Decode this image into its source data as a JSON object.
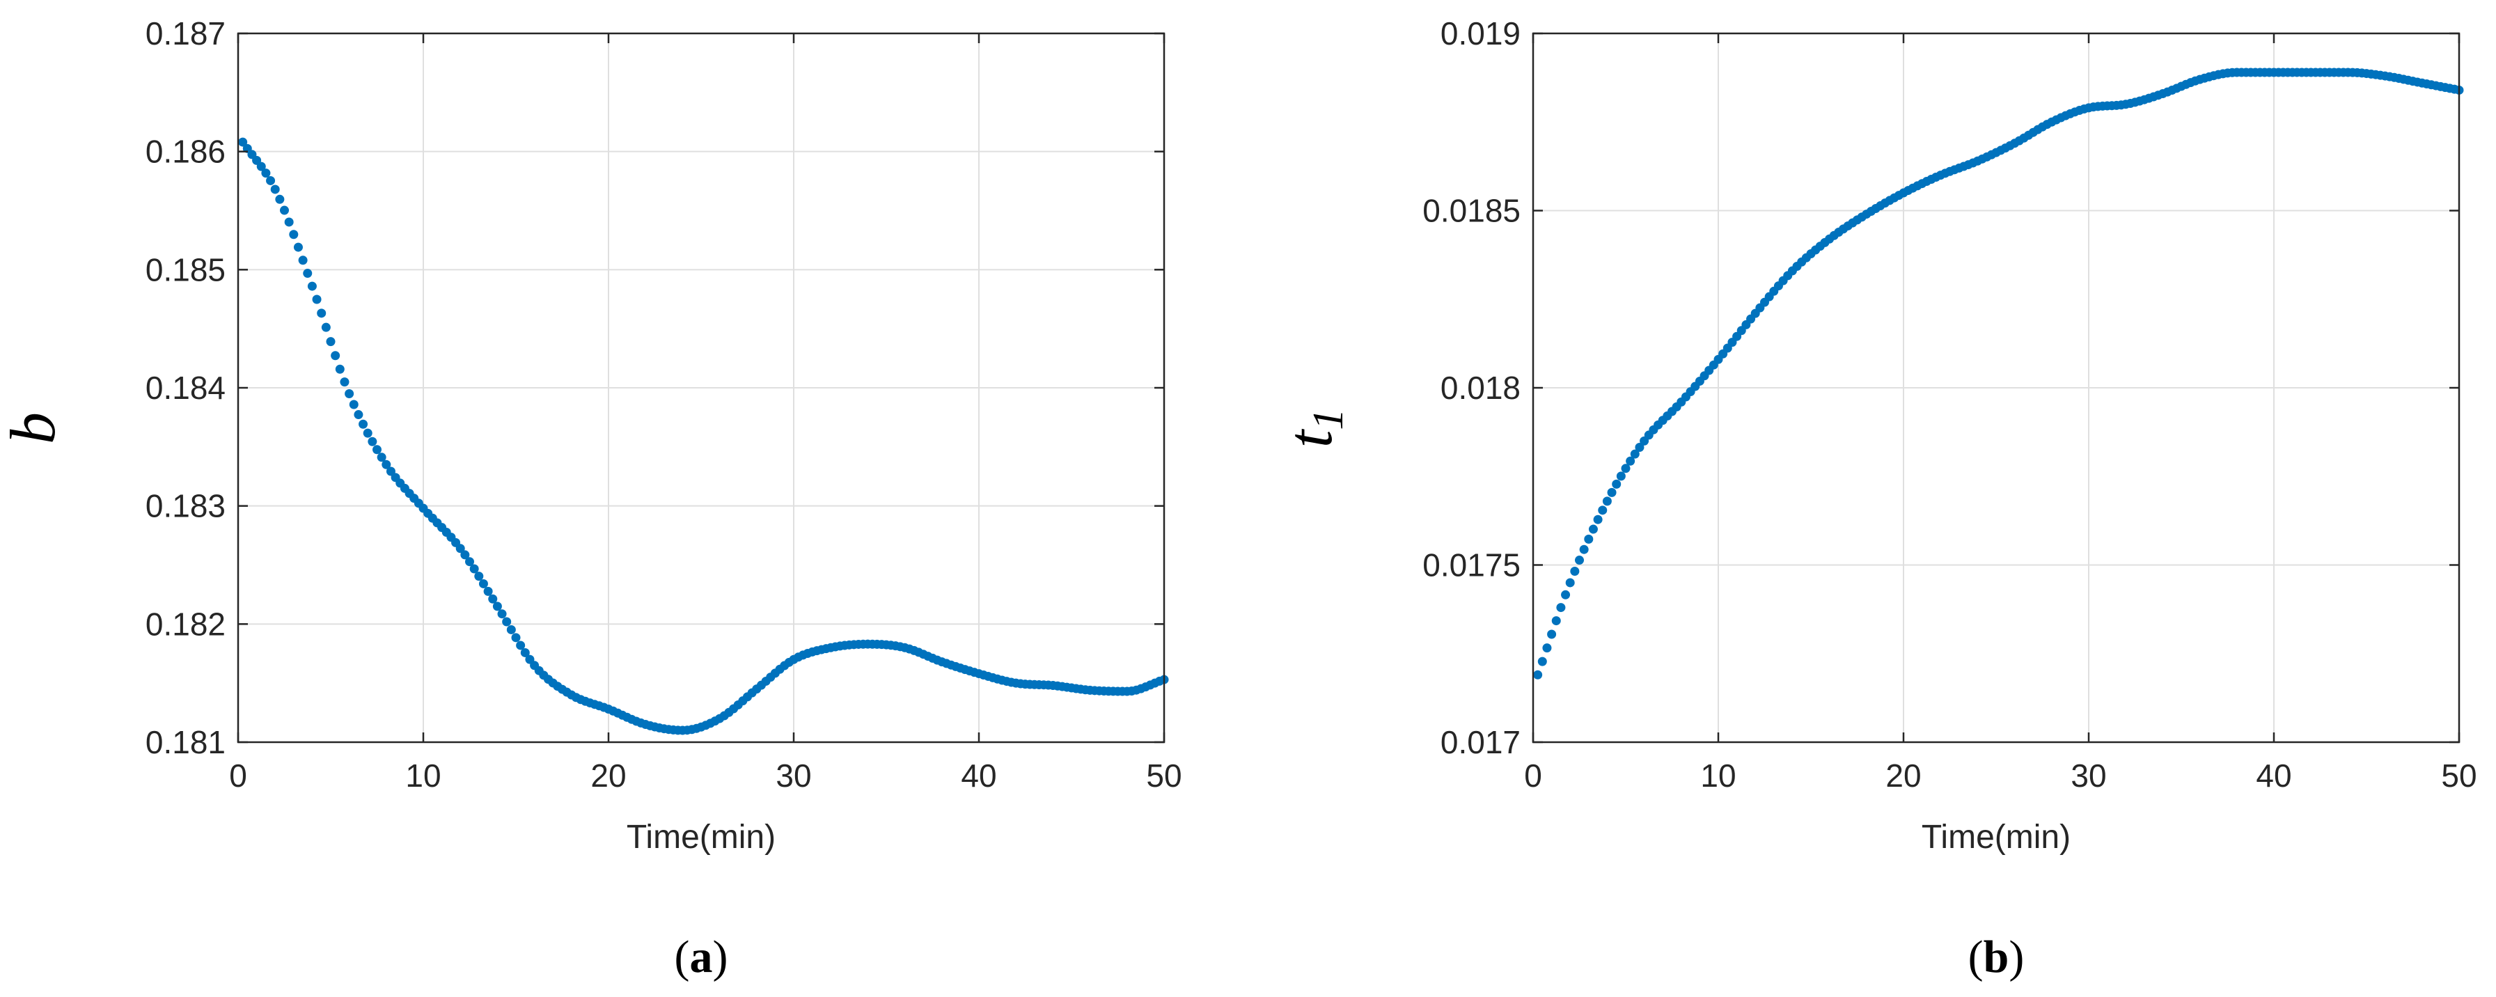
{
  "chart_data": [
    {
      "type": "scatter",
      "panel_label": "a",
      "title": "",
      "xlabel": "Time(min)",
      "ylabel": "b",
      "ylabel_subscript": "",
      "xlim": [
        0,
        50
      ],
      "ylim": [
        0.181,
        0.187
      ],
      "xticks": [
        0,
        10,
        20,
        30,
        40,
        50
      ],
      "xtick_labels": [
        "0",
        "10",
        "20",
        "30",
        "40",
        "50"
      ],
      "yticks": [
        0.181,
        0.182,
        0.183,
        0.184,
        0.185,
        0.186,
        0.187
      ],
      "ytick_labels": [
        "0.181",
        "0.182",
        "0.183",
        "0.184",
        "0.185",
        "0.186",
        "0.187"
      ],
      "grid": true,
      "color": "#0072BD",
      "x": [
        0.25,
        2,
        4,
        6,
        8,
        10,
        12,
        14,
        16,
        18,
        20,
        22,
        24,
        26,
        28,
        30,
        32,
        34,
        36,
        38,
        40,
        42,
        44,
        46,
        48,
        50
      ],
      "y": [
        0.18608,
        0.18568,
        0.18486,
        0.18395,
        0.18335,
        0.18298,
        0.18264,
        0.18215,
        0.18165,
        0.1814,
        0.18128,
        0.18115,
        0.1811,
        0.1812,
        0.18145,
        0.1817,
        0.1818,
        0.18183,
        0.1818,
        0.18168,
        0.18158,
        0.1815,
        0.18148,
        0.18144,
        0.18143,
        0.18153
      ]
    },
    {
      "type": "scatter",
      "panel_label": "b",
      "title": "",
      "xlabel": "Time(min)",
      "ylabel": "t",
      "ylabel_subscript": "1",
      "xlim": [
        0,
        50
      ],
      "ylim": [
        0.017,
        0.019
      ],
      "xticks": [
        0,
        10,
        20,
        30,
        40,
        50
      ],
      "xtick_labels": [
        "0",
        "10",
        "20",
        "30",
        "40",
        "50"
      ],
      "yticks": [
        0.017,
        0.0175,
        0.018,
        0.0185,
        0.019
      ],
      "ytick_labels": [
        "0.017",
        "0.0175",
        "0.018",
        "0.0185",
        "0.019"
      ],
      "grid": true,
      "color": "#0072BD",
      "x": [
        0.25,
        2,
        4,
        6,
        8,
        10,
        12,
        14,
        16,
        18,
        20,
        22,
        24,
        26,
        28,
        30,
        32,
        34,
        36,
        38,
        40,
        42,
        44,
        46,
        48,
        50
      ],
      "y": [
        0.01719,
        0.01745,
        0.01768,
        0.01785,
        0.01796,
        0.01808,
        0.01821,
        0.01833,
        0.01842,
        0.01849,
        0.01855,
        0.0186,
        0.01864,
        0.01869,
        0.01875,
        0.01879,
        0.0188,
        0.01883,
        0.01887,
        0.01889,
        0.01889,
        0.01889,
        0.01889,
        0.01888,
        0.01886,
        0.01884
      ]
    }
  ]
}
